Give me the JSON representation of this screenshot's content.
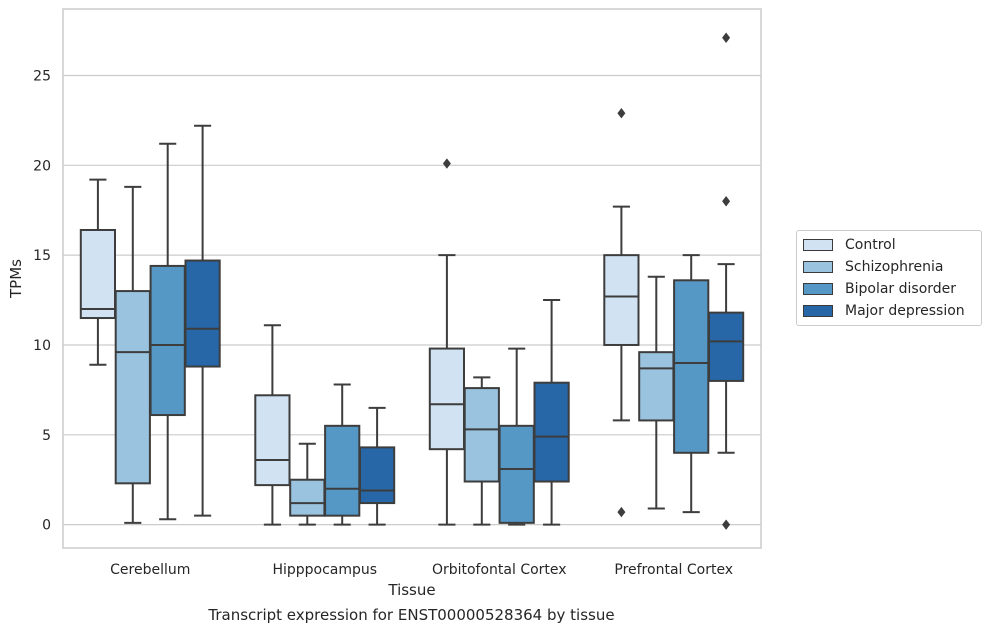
{
  "caption": "Transcript expression for ENST00000528364 by tissue",
  "chart_data": {
    "type": "box",
    "xlabel": "Tissue",
    "ylabel": "TPMs",
    "ylim": [
      -1.3,
      28.7
    ],
    "yticks": [
      0,
      5,
      10,
      15,
      20,
      25
    ],
    "grid": "horizontal",
    "legend_position": "outside-right",
    "categories": [
      "Cerebellum",
      "Hipppocampus",
      "Orbitofontal Cortex",
      "Prefrontal Cortex"
    ],
    "series": [
      {
        "name": "Control",
        "color": "#d1e2f2",
        "boxes": [
          {
            "whislo": 8.9,
            "q1": 11.5,
            "med": 12.0,
            "q3": 16.4,
            "whishi": 19.2,
            "fliers": []
          },
          {
            "whislo": 0.0,
            "q1": 2.2,
            "med": 3.6,
            "q3": 7.2,
            "whishi": 11.1,
            "fliers": []
          },
          {
            "whislo": 0.0,
            "q1": 4.2,
            "med": 6.7,
            "q3": 9.8,
            "whishi": 15.0,
            "fliers": [
              20.1
            ]
          },
          {
            "whislo": 5.8,
            "q1": 10.0,
            "med": 12.7,
            "q3": 15.0,
            "whishi": 17.7,
            "fliers": [
              22.9,
              0.7
            ]
          }
        ]
      },
      {
        "name": "Schizophrenia",
        "color": "#9ac3df",
        "boxes": [
          {
            "whislo": 0.1,
            "q1": 2.3,
            "med": 9.6,
            "q3": 13.0,
            "whishi": 18.8,
            "fliers": []
          },
          {
            "whislo": 0.0,
            "q1": 0.5,
            "med": 1.2,
            "q3": 2.5,
            "whishi": 4.5,
            "fliers": []
          },
          {
            "whislo": 0.0,
            "q1": 2.4,
            "med": 5.3,
            "q3": 7.6,
            "whishi": 8.2,
            "fliers": []
          },
          {
            "whislo": 0.9,
            "q1": 5.8,
            "med": 8.7,
            "q3": 9.6,
            "whishi": 13.8,
            "fliers": []
          }
        ]
      },
      {
        "name": "Bipolar disorder",
        "color": "#5598c6",
        "boxes": [
          {
            "whislo": 0.3,
            "q1": 6.1,
            "med": 10.0,
            "q3": 14.4,
            "whishi": 21.2,
            "fliers": []
          },
          {
            "whislo": 0.0,
            "q1": 0.5,
            "med": 2.0,
            "q3": 5.5,
            "whishi": 7.8,
            "fliers": []
          },
          {
            "whislo": 0.0,
            "q1": 0.1,
            "med": 3.1,
            "q3": 5.5,
            "whishi": 9.8,
            "fliers": []
          },
          {
            "whislo": 0.7,
            "q1": 4.0,
            "med": 9.0,
            "q3": 13.6,
            "whishi": 15.0,
            "fliers": []
          }
        ]
      },
      {
        "name": "Major depression",
        "color": "#2767a8",
        "boxes": [
          {
            "whislo": 0.5,
            "q1": 8.8,
            "med": 10.9,
            "q3": 14.7,
            "whishi": 22.2,
            "fliers": []
          },
          {
            "whislo": 0.0,
            "q1": 1.2,
            "med": 1.9,
            "q3": 4.3,
            "whishi": 6.5,
            "fliers": []
          },
          {
            "whislo": 0.0,
            "q1": 2.4,
            "med": 4.9,
            "q3": 7.9,
            "whishi": 12.5,
            "fliers": []
          },
          {
            "whislo": 4.0,
            "q1": 8.0,
            "med": 10.2,
            "q3": 11.8,
            "whishi": 14.5,
            "fliers": [
              27.1,
              18.0,
              0.0
            ]
          }
        ]
      }
    ]
  }
}
